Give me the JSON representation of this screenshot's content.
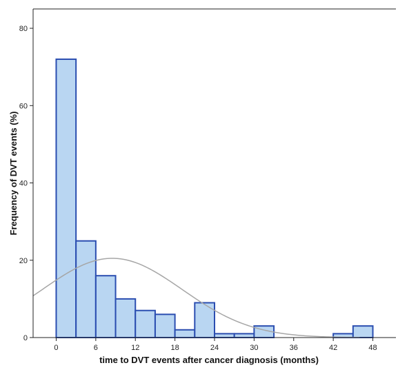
{
  "chart_data": {
    "type": "bar",
    "title": "",
    "xlabel": "time to DVT events after cancer diagnosis (months)",
    "ylabel": "Frequency of DVT events (%)",
    "xlim": [
      -3.5,
      51.5
    ],
    "ylim": [
      0,
      85
    ],
    "x_ticks": [
      "0",
      "6",
      "12",
      "18",
      "24",
      "30",
      "36",
      "42",
      "48"
    ],
    "x_tick_values": [
      0,
      6,
      12,
      18,
      24,
      30,
      36,
      42,
      48
    ],
    "y_ticks": [
      "0",
      "20",
      "40",
      "60",
      "80"
    ],
    "y_tick_values": [
      0,
      20,
      40,
      60,
      80
    ],
    "bin_width": 3,
    "bins": [
      {
        "start": 0,
        "end": 3,
        "value": 72
      },
      {
        "start": 3,
        "end": 6,
        "value": 25
      },
      {
        "start": 6,
        "end": 9,
        "value": 16
      },
      {
        "start": 9,
        "end": 12,
        "value": 10
      },
      {
        "start": 12,
        "end": 15,
        "value": 7
      },
      {
        "start": 15,
        "end": 18,
        "value": 6
      },
      {
        "start": 18,
        "end": 21,
        "value": 2
      },
      {
        "start": 21,
        "end": 24,
        "value": 9
      },
      {
        "start": 24,
        "end": 27,
        "value": 1
      },
      {
        "start": 27,
        "end": 30,
        "value": 1
      },
      {
        "start": 30,
        "end": 33,
        "value": 3
      },
      {
        "start": 33,
        "end": 36,
        "value": 0
      },
      {
        "start": 36,
        "end": 39,
        "value": 0
      },
      {
        "start": 39,
        "end": 42,
        "value": 0
      },
      {
        "start": 42,
        "end": 45,
        "value": 1
      },
      {
        "start": 45,
        "end": 48,
        "value": 3
      }
    ],
    "normal_curve": {
      "mean": 8.5,
      "sd": 10.6,
      "peak": 20.5
    },
    "grid": false,
    "colors": {
      "bar_fill": "#b9d6f2",
      "bar_stroke": "#2a4db0",
      "curve": "#a6a6a6",
      "axis": "#222222"
    }
  }
}
